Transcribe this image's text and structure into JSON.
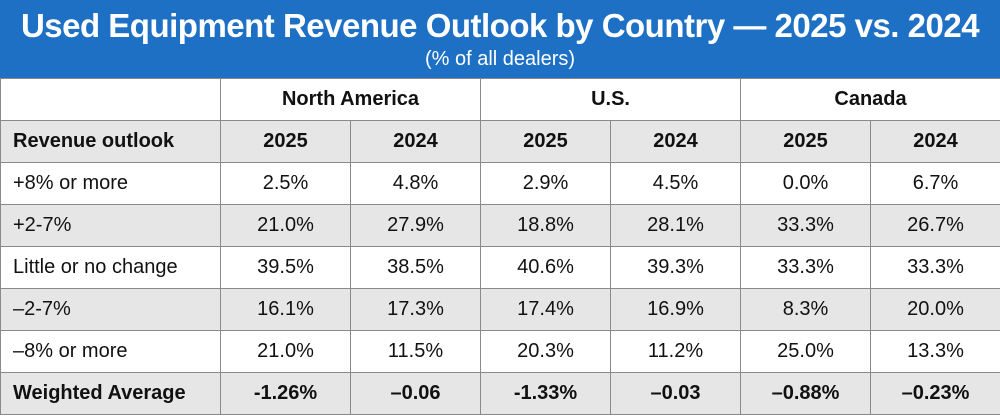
{
  "title": "Used Equipment Revenue Outlook by Country — 2025 vs. 2024",
  "subtitle": "(% of all dealers)",
  "table": {
    "label_header": "Revenue outlook",
    "regions": [
      "North America",
      "U.S.",
      "Canada"
    ],
    "years": [
      "2025",
      "2024",
      "2025",
      "2024",
      "2025",
      "2024"
    ],
    "rows": [
      {
        "label": "+8% or more",
        "values": [
          "2.5%",
          "4.8%",
          "2.9%",
          "4.5%",
          "0.0%",
          "6.7%"
        ]
      },
      {
        "label": "+2-7%",
        "values": [
          "21.0%",
          "27.9%",
          "18.8%",
          "28.1%",
          "33.3%",
          "26.7%"
        ]
      },
      {
        "label": "Little or no change",
        "values": [
          "39.5%",
          "38.5%",
          "40.6%",
          "39.3%",
          "33.3%",
          "33.3%"
        ]
      },
      {
        "label": "–2-7%",
        "values": [
          "16.1%",
          "17.3%",
          "17.4%",
          "16.9%",
          "8.3%",
          "20.0%"
        ]
      },
      {
        "label": "–8% or more",
        "values": [
          "21.0%",
          "11.5%",
          "20.3%",
          "11.2%",
          "25.0%",
          "13.3%"
        ]
      },
      {
        "label": "Weighted Average",
        "values": [
          "-1.26%",
          "–0.06",
          "-1.33%",
          "–0.03",
          "–0.88%",
          "–0.23%"
        ]
      }
    ]
  },
  "colors": {
    "banner": "#1d70c4",
    "shade": "#e6e6e6",
    "border": "#8a8a8a"
  }
}
